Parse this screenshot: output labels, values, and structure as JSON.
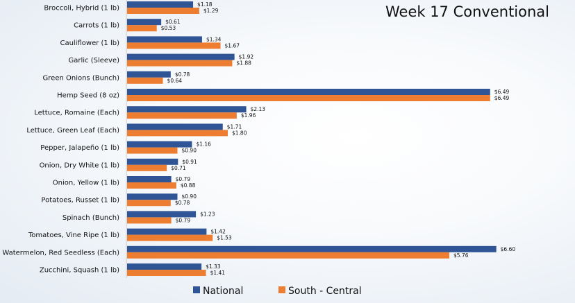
{
  "chart_data": {
    "type": "bar",
    "orientation": "horizontal",
    "title": "Week 17 Conventional",
    "categories": [
      "Broccoli, Hybrid (1 lb)",
      "Carrots (1 lb)",
      "Cauliflower (1 lb)",
      "Garlic (Sleeve)",
      "Green Onions (Bunch)",
      "Hemp Seed (8 oz)",
      "Lettuce, Romaine (Each)",
      "Lettuce, Green Leaf (Each)",
      "Pepper, Jalapeño (1 lb)",
      "Onion, Dry White (1 lb)",
      "Onion, Yellow (1 lb)",
      "Potatoes, Russet (1 lb)",
      "Spinach (Bunch)",
      "Tomatoes, Vine Ripe (1 lb)",
      "Watermelon, Red Seedless (Each)",
      "Zucchini, Squash (1 lb)"
    ],
    "series": [
      {
        "name": "National",
        "color": "#2f5597",
        "values": [
          1.18,
          0.61,
          1.34,
          1.92,
          0.78,
          6.49,
          2.13,
          1.71,
          1.16,
          0.91,
          0.79,
          0.9,
          1.23,
          1.42,
          6.6,
          1.33
        ],
        "labels": [
          "$1.18",
          "$0.61",
          "$1.34",
          "$1.92",
          "$0.78",
          "$6.49",
          "$2.13",
          "$1.71",
          "$1.16",
          "$0.91",
          "$0.79",
          "$0.90",
          "$1.23",
          "$1.42",
          "$6.60",
          "$1.33"
        ]
      },
      {
        "name": "South - Central",
        "color": "#ed7d31",
        "values": [
          1.29,
          0.53,
          1.67,
          1.88,
          0.64,
          6.49,
          1.96,
          1.8,
          0.9,
          0.71,
          0.88,
          0.78,
          0.79,
          1.53,
          5.76,
          1.41
        ],
        "labels": [
          "$1.29",
          "$0.53",
          "$1.67",
          "$1.88",
          "$0.64",
          "$6.49",
          "$1.96",
          "$1.80",
          "$0.90",
          "$0.71",
          "$0.88",
          "$0.78",
          "$0.79",
          "$1.53",
          "$5.76",
          "$1.41"
        ]
      }
    ],
    "xlim": [
      0,
      7.2
    ],
    "grid": false,
    "legend": "bottom"
  }
}
